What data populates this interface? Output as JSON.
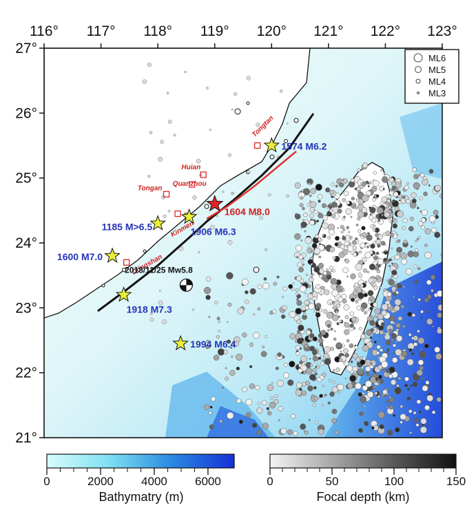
{
  "map": {
    "lon_ticks": [
      "116°",
      "117°",
      "118°",
      "119°",
      "120°",
      "121°",
      "122°",
      "123°"
    ],
    "lat_ticks": [
      "27°",
      "26°",
      "25°",
      "24°",
      "23°",
      "22°",
      "21°"
    ],
    "lon_range": [
      116,
      123
    ],
    "lat_range": [
      21,
      27
    ]
  },
  "historical_quakes": [
    {
      "label": "1574 M6.2",
      "lon": 120.0,
      "lat": 25.5
    },
    {
      "label": "1185 M>6.5",
      "lon": 118.0,
      "lat": 24.3
    },
    {
      "label": "1906 M6.3",
      "lon": 118.55,
      "lat": 24.4
    },
    {
      "label": "1600 M7.0",
      "lon": 117.2,
      "lat": 23.8
    },
    {
      "label": "1918 M7.3",
      "lon": 117.4,
      "lat": 23.2
    },
    {
      "label": "1994 M6.4",
      "lon": 118.4,
      "lat": 22.45
    }
  ],
  "main_quake": {
    "label": "1604 M8.0",
    "lon": 119.0,
    "lat": 24.6
  },
  "event_2018": {
    "label": "2018/11/25 Mw5.8",
    "lon": 118.5,
    "lat": 23.35
  },
  "cities": [
    {
      "name": "Huian",
      "lon": 118.8,
      "lat": 25.05
    },
    {
      "name": "Tongan",
      "lon": 118.15,
      "lat": 24.75
    },
    {
      "name": "Quanzhou",
      "lon": 118.6,
      "lat": 24.9
    },
    {
      "name": "Kinmen",
      "lon": 118.35,
      "lat": 24.45
    },
    {
      "name": "Dongshan",
      "lon": 117.45,
      "lat": 23.7
    },
    {
      "name": "Tongtan",
      "lon": 119.75,
      "lat": 25.5
    }
  ],
  "legend": {
    "items": [
      {
        "label": "ML6",
        "r": 6
      },
      {
        "label": "ML5",
        "r": 4.5
      },
      {
        "label": "ML4",
        "r": 3
      },
      {
        "label": "ML3",
        "r": 1.5
      }
    ]
  },
  "bathymetry_bar": {
    "title": "Bathymatry (m)",
    "ticks": [
      "0",
      "2000",
      "4000",
      "6000"
    ],
    "colors": [
      "#d8fbfb",
      "#7fe0f2",
      "#2a8be0",
      "#1530d8"
    ]
  },
  "depth_bar": {
    "title": "Focal depth (km)",
    "ticks": [
      "0",
      "50",
      "100",
      "150"
    ],
    "colors": [
      "#f4f4f4",
      "#a8a8a8",
      "#5a5a5a",
      "#111111"
    ]
  }
}
